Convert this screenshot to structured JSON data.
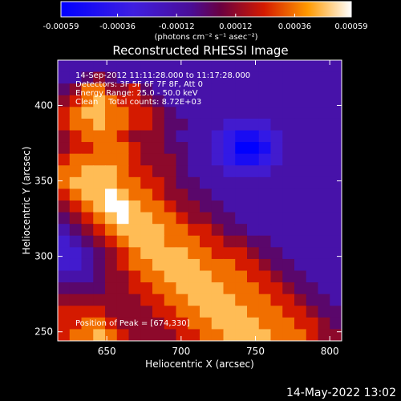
{
  "chart_data": {
    "type": "heatmap",
    "title": "Reconstructed RHESSI Image",
    "xlabel": "Heliocentric X (arcsec)",
    "ylabel": "Heliocentric Y (arcsec)",
    "xlim": [
      617,
      808
    ],
    "ylim": [
      244,
      430
    ],
    "x_ticks": [
      650,
      700,
      750,
      800
    ],
    "y_ticks": [
      250,
      300,
      350,
      400
    ],
    "colorbar": {
      "range": [
        -0.00059,
        0.00059
      ],
      "ticks": [
        -0.00059,
        -0.00036,
        -0.00012,
        0.00012,
        0.00036,
        0.00059
      ],
      "tick_labels": [
        "-0.00059",
        "-0.00036",
        "-0.00012",
        "0.00012",
        "0.00036",
        "0.00059"
      ],
      "unit_label": "(photons cm⁻² s⁻¹ asec⁻²)"
    },
    "info_lines": [
      "14-Sep-2012 11:11:28.000 to 11:17:28.000",
      "Detectors: 3F 5F 6F 7F 8F, Att 0",
      "Energy Range: 25.0 - 50.0 keV",
      "Clean    Total counts: 8.72E+03"
    ],
    "peak_label": "Position of Peak = [674,330]",
    "peak": {
      "x": 674,
      "y": 330
    },
    "grid": false,
    "image_rows_top_to_bottom": [
      [
        0.4,
        0.4,
        0.4,
        0.4,
        0.4,
        0.4,
        0.4,
        0.4,
        0.4,
        0.4,
        0.4,
        0.4,
        0.4,
        0.4,
        0.4,
        0.4,
        0.4,
        0.4,
        0.4,
        0.4,
        0.4,
        0.4,
        0.4,
        0.4
      ],
      [
        0.4,
        0.4,
        0.5,
        0.6,
        0.5,
        0.4,
        0.4,
        0.4,
        0.4,
        0.4,
        0.4,
        0.4,
        0.4,
        0.4,
        0.4,
        0.4,
        0.4,
        0.4,
        0.4,
        0.4,
        0.4,
        0.4,
        0.4,
        0.4
      ],
      [
        0.5,
        0.6,
        0.8,
        0.8,
        0.6,
        0.6,
        0.7,
        0.5,
        0.4,
        0.4,
        0.4,
        0.4,
        0.4,
        0.4,
        0.4,
        0.4,
        0.4,
        0.4,
        0.4,
        0.4,
        0.4,
        0.4,
        0.4,
        0.4
      ],
      [
        0.6,
        0.7,
        0.8,
        0.9,
        0.8,
        0.7,
        0.7,
        0.6,
        0.5,
        0.4,
        0.4,
        0.4,
        0.4,
        0.4,
        0.4,
        0.4,
        0.4,
        0.4,
        0.4,
        0.4,
        0.4,
        0.4,
        0.4,
        0.4
      ],
      [
        0.7,
        0.8,
        0.9,
        0.9,
        0.8,
        0.8,
        0.7,
        0.7,
        0.6,
        0.5,
        0.4,
        0.4,
        0.4,
        0.4,
        0.4,
        0.4,
        0.4,
        0.4,
        0.4,
        0.4,
        0.4,
        0.4,
        0.4,
        0.4
      ],
      [
        0.7,
        0.8,
        0.8,
        0.9,
        0.8,
        0.8,
        0.7,
        0.7,
        0.6,
        0.5,
        0.5,
        0.4,
        0.4,
        0.4,
        0.3,
        0.3,
        0.3,
        0.3,
        0.4,
        0.4,
        0.4,
        0.4,
        0.4,
        0.4
      ],
      [
        0.6,
        0.7,
        0.8,
        0.8,
        0.8,
        0.7,
        0.6,
        0.6,
        0.6,
        0.5,
        0.4,
        0.4,
        0.4,
        0.3,
        0.2,
        0.1,
        0.1,
        0.2,
        0.3,
        0.4,
        0.4,
        0.4,
        0.4,
        0.4
      ],
      [
        0.6,
        0.7,
        0.7,
        0.8,
        0.8,
        0.8,
        0.7,
        0.6,
        0.6,
        0.5,
        0.5,
        0.4,
        0.4,
        0.3,
        0.2,
        0.0,
        0.0,
        0.1,
        0.3,
        0.4,
        0.4,
        0.4,
        0.4,
        0.4
      ],
      [
        0.7,
        0.8,
        0.8,
        0.8,
        0.8,
        0.8,
        0.7,
        0.6,
        0.6,
        0.6,
        0.5,
        0.4,
        0.4,
        0.3,
        0.2,
        0.1,
        0.1,
        0.2,
        0.3,
        0.4,
        0.4,
        0.4,
        0.4,
        0.4
      ],
      [
        0.8,
        0.8,
        0.9,
        0.9,
        0.9,
        0.8,
        0.7,
        0.7,
        0.6,
        0.6,
        0.5,
        0.4,
        0.4,
        0.4,
        0.3,
        0.3,
        0.3,
        0.3,
        0.4,
        0.4,
        0.4,
        0.4,
        0.4,
        0.4
      ],
      [
        0.8,
        0.9,
        0.9,
        0.9,
        0.9,
        0.8,
        0.8,
        0.7,
        0.7,
        0.6,
        0.5,
        0.5,
        0.4,
        0.4,
        0.4,
        0.4,
        0.4,
        0.4,
        0.4,
        0.4,
        0.4,
        0.4,
        0.4,
        0.4
      ],
      [
        0.7,
        0.8,
        0.9,
        0.9,
        1.0,
        0.9,
        0.8,
        0.8,
        0.7,
        0.6,
        0.6,
        0.5,
        0.5,
        0.4,
        0.4,
        0.4,
        0.4,
        0.4,
        0.4,
        0.4,
        0.4,
        0.4,
        0.4,
        0.4
      ],
      [
        0.6,
        0.7,
        0.8,
        0.9,
        1.0,
        1.0,
        0.9,
        0.8,
        0.8,
        0.7,
        0.6,
        0.6,
        0.5,
        0.5,
        0.4,
        0.4,
        0.4,
        0.4,
        0.4,
        0.4,
        0.4,
        0.4,
        0.4,
        0.4
      ],
      [
        0.5,
        0.6,
        0.7,
        0.8,
        0.9,
        1.0,
        0.9,
        0.9,
        0.8,
        0.8,
        0.7,
        0.6,
        0.6,
        0.5,
        0.5,
        0.4,
        0.4,
        0.4,
        0.4,
        0.4,
        0.4,
        0.4,
        0.4,
        0.4
      ],
      [
        0.4,
        0.5,
        0.6,
        0.7,
        0.8,
        0.9,
        0.9,
        0.9,
        0.9,
        0.8,
        0.8,
        0.7,
        0.7,
        0.6,
        0.5,
        0.5,
        0.4,
        0.4,
        0.4,
        0.4,
        0.4,
        0.4,
        0.4,
        0.4
      ],
      [
        0.3,
        0.4,
        0.5,
        0.6,
        0.7,
        0.8,
        0.9,
        0.9,
        0.9,
        0.8,
        0.8,
        0.8,
        0.7,
        0.7,
        0.6,
        0.6,
        0.5,
        0.5,
        0.4,
        0.4,
        0.4,
        0.4,
        0.4,
        0.4
      ],
      [
        0.3,
        0.3,
        0.4,
        0.5,
        0.6,
        0.7,
        0.8,
        0.9,
        0.9,
        0.9,
        0.9,
        0.8,
        0.8,
        0.7,
        0.7,
        0.7,
        0.6,
        0.5,
        0.5,
        0.4,
        0.4,
        0.4,
        0.4,
        0.4
      ],
      [
        0.3,
        0.3,
        0.4,
        0.5,
        0.6,
        0.7,
        0.8,
        0.8,
        0.9,
        0.9,
        0.9,
        0.9,
        0.8,
        0.8,
        0.8,
        0.7,
        0.7,
        0.6,
        0.5,
        0.5,
        0.4,
        0.4,
        0.4,
        0.4
      ],
      [
        0.4,
        0.4,
        0.4,
        0.5,
        0.6,
        0.6,
        0.7,
        0.8,
        0.8,
        0.9,
        0.9,
        0.9,
        0.9,
        0.8,
        0.8,
        0.8,
        0.7,
        0.7,
        0.6,
        0.5,
        0.5,
        0.4,
        0.4,
        0.4
      ],
      [
        0.5,
        0.5,
        0.5,
        0.5,
        0.6,
        0.6,
        0.7,
        0.7,
        0.8,
        0.8,
        0.9,
        0.9,
        0.9,
        0.9,
        0.8,
        0.8,
        0.8,
        0.7,
        0.7,
        0.6,
        0.5,
        0.5,
        0.4,
        0.4
      ],
      [
        0.6,
        0.6,
        0.6,
        0.6,
        0.6,
        0.6,
        0.6,
        0.7,
        0.7,
        0.8,
        0.8,
        0.9,
        0.9,
        0.9,
        0.9,
        0.8,
        0.8,
        0.8,
        0.7,
        0.7,
        0.6,
        0.5,
        0.5,
        0.4
      ],
      [
        0.7,
        0.7,
        0.7,
        0.7,
        0.6,
        0.6,
        0.6,
        0.6,
        0.7,
        0.7,
        0.8,
        0.8,
        0.9,
        0.9,
        0.9,
        0.9,
        0.8,
        0.8,
        0.8,
        0.7,
        0.7,
        0.6,
        0.5,
        0.5
      ],
      [
        0.7,
        0.7,
        0.8,
        0.8,
        0.7,
        0.6,
        0.6,
        0.6,
        0.6,
        0.7,
        0.7,
        0.8,
        0.8,
        0.9,
        0.9,
        0.9,
        0.9,
        0.8,
        0.8,
        0.8,
        0.7,
        0.7,
        0.6,
        0.5
      ],
      [
        0.7,
        0.8,
        0.8,
        0.9,
        0.8,
        0.7,
        0.6,
        0.6,
        0.6,
        0.6,
        0.7,
        0.7,
        0.8,
        0.8,
        0.9,
        0.9,
        0.9,
        0.9,
        0.8,
        0.8,
        0.8,
        0.7,
        0.6,
        0.6
      ]
    ]
  },
  "footer": {
    "timestamp": "14-May-2022 13:02"
  }
}
